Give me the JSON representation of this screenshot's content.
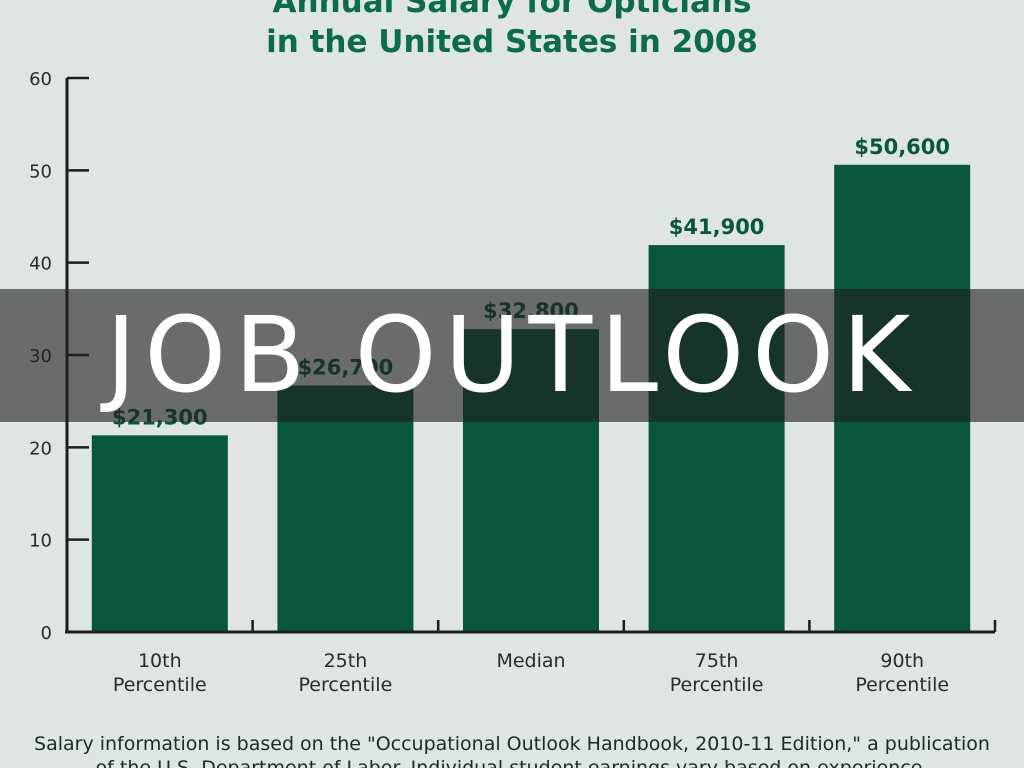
{
  "overlay": {
    "text": "JOB OUTLOOK"
  },
  "chart_data": {
    "type": "bar",
    "title_lines": [
      "Annual Salary for Opticians",
      "in the United States in 2008"
    ],
    "categories": [
      [
        "10th",
        "Percentile"
      ],
      [
        "25th",
        "Percentile"
      ],
      [
        "Median"
      ],
      [
        "75th",
        "Percentile"
      ],
      [
        "90th",
        "Percentile"
      ]
    ],
    "values": [
      21.3,
      26.7,
      32.8,
      41.9,
      50.6
    ],
    "data_labels": [
      "$21,300",
      "$26,700",
      "$32,800",
      "$41,900",
      "$50,600"
    ],
    "yticks": [
      "0",
      "10",
      "20",
      "30",
      "40",
      "50",
      "60"
    ],
    "ylim": [
      0,
      60
    ],
    "grid": false,
    "bar_color": "#07563d",
    "title_color": "#0c6b4d",
    "footnote_lines": [
      "Salary information is based on the \"Occupational Outlook Handbook, 2010-11 Edition,\" a publication",
      "of the U.S. Department of Labor. Individual student earnings vary based on experience."
    ]
  }
}
